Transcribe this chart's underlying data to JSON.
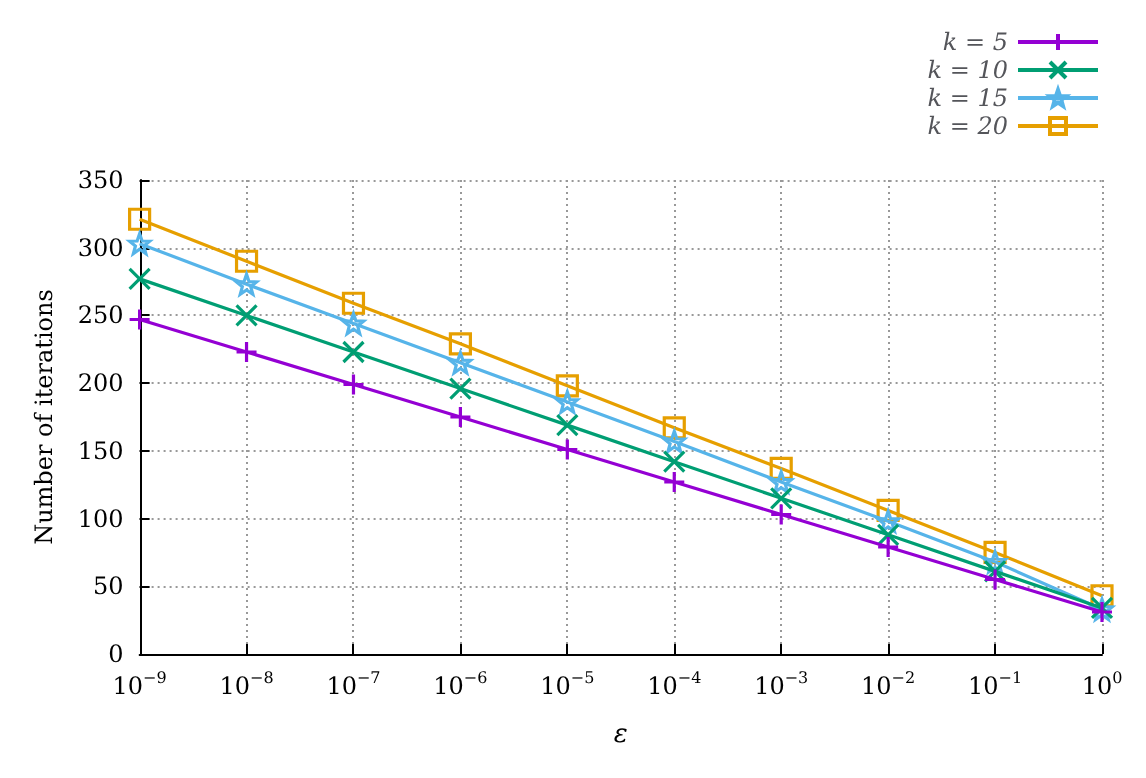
{
  "chart_data": {
    "type": "line",
    "xlabel": "ε",
    "ylabel": "Number of iterations",
    "x": [
      1e-09,
      1e-08,
      1e-07,
      1e-06,
      1e-05,
      0.0001,
      0.001,
      0.01,
      0.1,
      1
    ],
    "series": [
      {
        "name": "k = 5",
        "color": "#9400d3",
        "marker": "plus",
        "values": [
          247,
          223,
          199,
          175,
          151,
          127,
          103,
          79,
          55,
          31
        ]
      },
      {
        "name": "k = 10",
        "color": "#009e73",
        "marker": "cross",
        "values": [
          277,
          250,
          223,
          196,
          169,
          142,
          115,
          88,
          61,
          34
        ]
      },
      {
        "name": "k = 15",
        "color": "#56b4e9",
        "marker": "star",
        "values": [
          303,
          273,
          244,
          215,
          186,
          157,
          127,
          98,
          68,
          33
        ]
      },
      {
        "name": "k = 20",
        "color": "#e69f00",
        "marker": "square",
        "values": [
          321,
          290,
          259,
          229,
          198,
          167,
          137,
          106,
          75,
          43
        ]
      }
    ],
    "log": "x",
    "xlim": [
      1e-09,
      1
    ],
    "xticks": [
      {
        "value": 1e-09,
        "label": "10$^{−9}$"
      },
      {
        "value": 1e-08,
        "label": "10$^{−8}$"
      },
      {
        "value": 1e-07,
        "label": "10$^{−7}$"
      },
      {
        "value": 1e-06,
        "label": "10$^{−6}$"
      },
      {
        "value": 1e-05,
        "label": "10$^{−5}$"
      },
      {
        "value": 0.0001,
        "label": "10$^{−4}$"
      },
      {
        "value": 0.001,
        "label": "10$^{−3}$"
      },
      {
        "value": 0.01,
        "label": "10$^{−2}$"
      },
      {
        "value": 0.1,
        "label": "10$^{−1}$"
      },
      {
        "value": 1,
        "label": "10$^{0}$"
      }
    ],
    "ylim": [
      0,
      350
    ],
    "yticks": [
      0,
      50,
      100,
      150,
      200,
      250,
      300,
      350
    ],
    "grid": true,
    "legend": "top right",
    "line_style": "solid"
  }
}
